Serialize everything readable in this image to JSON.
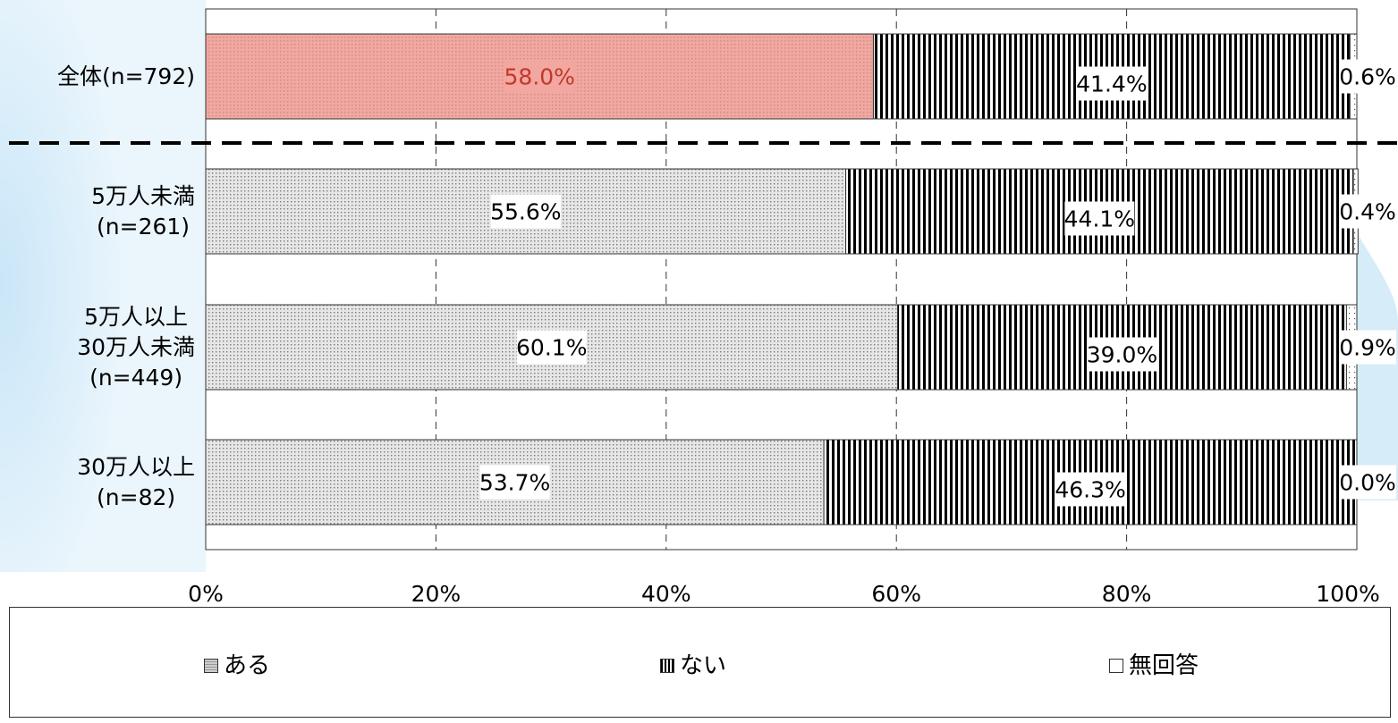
{
  "chart_data": {
    "type": "bar",
    "orientation": "horizontal",
    "stacked": true,
    "categories": [
      "全体(n=792)",
      "5万人未満\n(n=261)",
      "5万人以上\n30万人未満\n(n=449)",
      "30万人以上\n(n=82)"
    ],
    "series": [
      {
        "name": "ある",
        "values": [
          58.0,
          55.6,
          60.1,
          53.7
        ],
        "labels": [
          "58.0%",
          "55.6%",
          "60.1%",
          "53.7%"
        ]
      },
      {
        "name": "ない",
        "values": [
          41.4,
          44.1,
          39.0,
          46.3
        ],
        "labels": [
          "41.4%",
          "44.1%",
          "39.0%",
          "46.3%"
        ]
      },
      {
        "name": "無回答",
        "values": [
          0.6,
          0.4,
          0.9,
          0.0
        ],
        "labels": [
          "0.6%",
          "0.4%",
          "0.9%",
          "0.0%"
        ]
      }
    ],
    "x_ticks": [
      "0%",
      "20%",
      "40%",
      "60%",
      "80%",
      "100%"
    ],
    "xlim": [
      0,
      100
    ],
    "grid": "vertical dashed",
    "legend_position": "bottom",
    "highlight_category": 0,
    "colors": {
      "highlight": "#f2a7a0",
      "highlight_dot": "#c98b86",
      "dot_fill": "#e6e6e6",
      "dot": "#7a7a7a",
      "stripe": "#000000"
    }
  }
}
